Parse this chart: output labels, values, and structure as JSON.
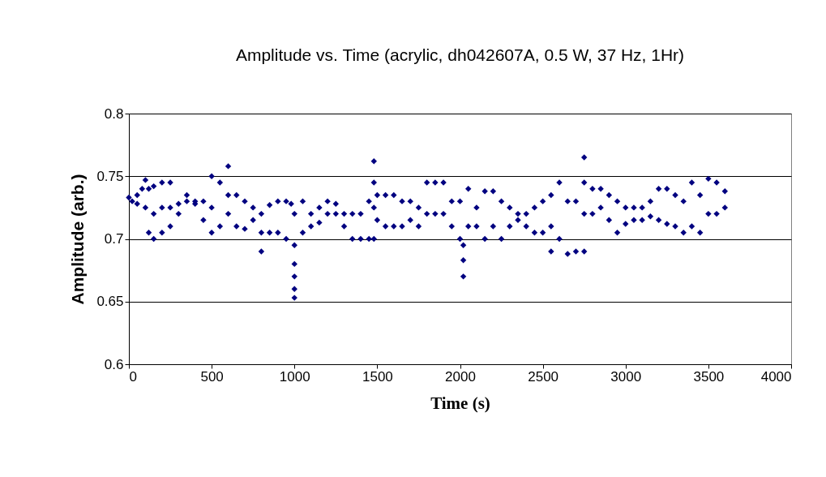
{
  "chart_data": {
    "type": "scatter",
    "title": "Amplitude vs. Time (acrylic, dh042607A, 0.5 W, 37 Hz, 1Hr)",
    "xlabel": "Time (s)",
    "ylabel": "Amplitude (arb.)",
    "x": [
      0,
      20,
      50,
      50,
      80,
      100,
      100,
      120,
      120,
      150,
      150,
      150,
      200,
      200,
      200,
      250,
      250,
      250,
      300,
      300,
      350,
      350,
      400,
      400,
      450,
      450,
      500,
      500,
      500,
      550,
      550,
      600,
      600,
      600,
      650,
      650,
      700,
      700,
      750,
      750,
      800,
      800,
      800,
      850,
      850,
      900,
      900,
      950,
      950,
      980,
      1000,
      1000,
      1000,
      1000,
      1000,
      1000,
      1050,
      1050,
      1100,
      1100,
      1150,
      1150,
      1200,
      1200,
      1250,
      1250,
      1300,
      1300,
      1350,
      1350,
      1400,
      1400,
      1450,
      1450,
      1480,
      1480,
      1480,
      1480,
      1500,
      1500,
      1550,
      1550,
      1600,
      1600,
      1650,
      1650,
      1700,
      1700,
      1750,
      1750,
      1800,
      1800,
      1850,
      1850,
      1900,
      1900,
      1950,
      1950,
      2000,
      2000,
      2020,
      2020,
      2020,
      2050,
      2050,
      2100,
      2100,
      2150,
      2150,
      2200,
      2200,
      2250,
      2250,
      2300,
      2300,
      2350,
      2350,
      2400,
      2400,
      2450,
      2450,
      2500,
      2500,
      2550,
      2550,
      2550,
      2600,
      2600,
      2650,
      2650,
      2700,
      2700,
      2750,
      2750,
      2750,
      2750,
      2800,
      2800,
      2850,
      2850,
      2900,
      2900,
      2950,
      2950,
      3000,
      3000,
      3050,
      3050,
      3100,
      3100,
      3150,
      3150,
      3200,
      3200,
      3250,
      3250,
      3300,
      3300,
      3350,
      3350,
      3400,
      3400,
      3450,
      3450,
      3500,
      3500,
      3550,
      3550,
      3600,
      3600
    ],
    "values": [
      0.733,
      0.73,
      0.735,
      0.728,
      0.74,
      0.747,
      0.725,
      0.74,
      0.705,
      0.742,
      0.72,
      0.7,
      0.745,
      0.725,
      0.705,
      0.745,
      0.725,
      0.71,
      0.728,
      0.72,
      0.735,
      0.73,
      0.73,
      0.728,
      0.73,
      0.715,
      0.75,
      0.725,
      0.705,
      0.745,
      0.71,
      0.758,
      0.735,
      0.72,
      0.735,
      0.71,
      0.73,
      0.708,
      0.725,
      0.715,
      0.72,
      0.705,
      0.69,
      0.727,
      0.705,
      0.73,
      0.705,
      0.73,
      0.7,
      0.728,
      0.695,
      0.68,
      0.67,
      0.66,
      0.653,
      0.72,
      0.73,
      0.705,
      0.72,
      0.71,
      0.725,
      0.713,
      0.73,
      0.72,
      0.728,
      0.72,
      0.72,
      0.71,
      0.72,
      0.7,
      0.72,
      0.7,
      0.73,
      0.7,
      0.762,
      0.745,
      0.725,
      0.7,
      0.735,
      0.715,
      0.735,
      0.71,
      0.735,
      0.71,
      0.73,
      0.71,
      0.73,
      0.715,
      0.725,
      0.71,
      0.745,
      0.72,
      0.745,
      0.72,
      0.745,
      0.72,
      0.73,
      0.71,
      0.73,
      0.7,
      0.695,
      0.683,
      0.67,
      0.74,
      0.71,
      0.725,
      0.71,
      0.738,
      0.7,
      0.738,
      0.71,
      0.73,
      0.7,
      0.725,
      0.71,
      0.72,
      0.715,
      0.72,
      0.71,
      0.725,
      0.705,
      0.73,
      0.705,
      0.735,
      0.71,
      0.69,
      0.745,
      0.7,
      0.73,
      0.688,
      0.73,
      0.69,
      0.765,
      0.745,
      0.72,
      0.69,
      0.74,
      0.72,
      0.74,
      0.725,
      0.735,
      0.715,
      0.73,
      0.705,
      0.725,
      0.712,
      0.725,
      0.715,
      0.725,
      0.715,
      0.73,
      0.718,
      0.74,
      0.715,
      0.74,
      0.712,
      0.735,
      0.71,
      0.73,
      0.705,
      0.745,
      0.71,
      0.735,
      0.705,
      0.748,
      0.72,
      0.745,
      0.72,
      0.738,
      0.725
    ],
    "color": "#000080",
    "marker": "diamond",
    "xlim": [
      0,
      4000
    ],
    "xticks": [
      0,
      500,
      1000,
      1500,
      2000,
      2500,
      3000,
      3500,
      4000
    ],
    "ylim": [
      0.6,
      0.8
    ],
    "yticks": [
      0.6,
      0.65,
      0.7,
      0.75,
      0.8
    ],
    "grid": "y"
  }
}
